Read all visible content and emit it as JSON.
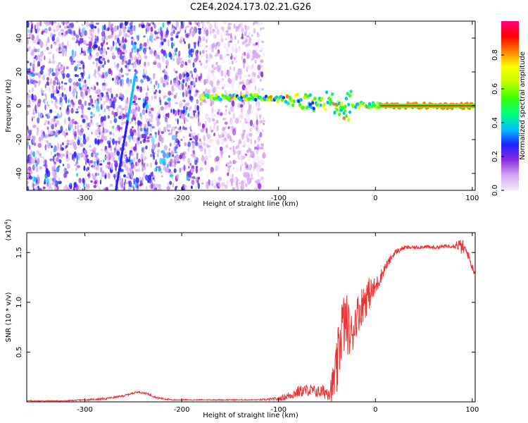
{
  "title": "C2E4.2024.173.02.21.G26",
  "chart_data": [
    {
      "type": "heatmap",
      "xlabel": "Height of straight line (km)",
      "ylabel": "Frequency (Hz)",
      "xlim": [
        -360,
        103
      ],
      "ylim": [
        -50,
        50
      ],
      "xticks": [
        -300,
        -200,
        -100,
        0,
        100
      ],
      "yticks": [
        -40,
        -20,
        0,
        20,
        40
      ],
      "colorbar": {
        "label": "Normalized spectral amplitude",
        "ticks": [
          0.0,
          0.2,
          0.4,
          0.6,
          0.8
        ],
        "range": [
          0,
          1
        ],
        "colormap": [
          "#f2e8fa",
          "#d4a6f2",
          "#8a2be2",
          "#2020ff",
          "#00c0ff",
          "#00ff80",
          "#40ff00",
          "#c0ff00",
          "#ffff00",
          "#ff8000",
          "#ff0000",
          "#ff0080"
        ]
      },
      "features": [
        {
          "name": "dominant line",
          "x_range": [
            -180,
            103
          ],
          "frequency": [
            5,
            5,
            4,
            2,
            0.5,
            0
          ],
          "frequency_x": [
            -180,
            -120,
            -100,
            -60,
            -20,
            10
          ],
          "amplitude": 0.9
        },
        {
          "name": "noise region",
          "x_range": [
            -360,
            -115
          ],
          "amplitude": 0.3
        },
        {
          "name": "diagonal streak",
          "x": [
            -268,
            -248
          ],
          "frequency": [
            -50,
            18
          ]
        }
      ]
    },
    {
      "type": "line",
      "xlabel": "Height of straight line (km)",
      "ylabel": "SNR (10 * v/v)",
      "y_exponent_label": "(x10",
      "y_exponent_power": "4",
      "y_exponent_close": ")",
      "xlim": [
        -360,
        103
      ],
      "ylim": [
        0,
        1.7
      ],
      "xticks": [
        -300,
        -200,
        -100,
        0,
        100
      ],
      "yticks": [
        0.5,
        1.0,
        1.5
      ],
      "y_units_scale": 10000,
      "color": "#ee3333",
      "x": [
        -360,
        -320,
        -280,
        -260,
        -250,
        -245,
        -235,
        -225,
        -210,
        -180,
        -150,
        -120,
        -100,
        -90,
        -80,
        -70,
        -60,
        -50,
        -45,
        -40,
        -35,
        -30,
        -25,
        -20,
        -15,
        -10,
        -5,
        0,
        10,
        20,
        30,
        40,
        50,
        60,
        70,
        80,
        85,
        90,
        95,
        100,
        103
      ],
      "y": [
        0.01,
        0.01,
        0.03,
        0.06,
        0.09,
        0.1,
        0.08,
        0.04,
        0.02,
        0.02,
        0.02,
        0.02,
        0.03,
        0.06,
        0.1,
        0.12,
        0.1,
        0.1,
        0.15,
        0.3,
        0.75,
        0.8,
        0.65,
        0.85,
        0.95,
        1.05,
        1.1,
        1.15,
        1.35,
        1.5,
        1.55,
        1.55,
        1.56,
        1.55,
        1.56,
        1.57,
        1.58,
        1.55,
        1.5,
        1.35,
        1.3
      ],
      "noise_amplitude": [
        0.005,
        0.005,
        0.01,
        0.01,
        0.01,
        0.01,
        0.01,
        0.01,
        0.005,
        0.005,
        0.005,
        0.005,
        0.02,
        0.04,
        0.06,
        0.06,
        0.06,
        0.08,
        0.15,
        0.3,
        0.35,
        0.3,
        0.25,
        0.2,
        0.2,
        0.2,
        0.15,
        0.1,
        0.05,
        0.03,
        0.02,
        0.02,
        0.02,
        0.02,
        0.02,
        0.02,
        0.06,
        0.08,
        0.05,
        0.04,
        0.04
      ]
    }
  ]
}
